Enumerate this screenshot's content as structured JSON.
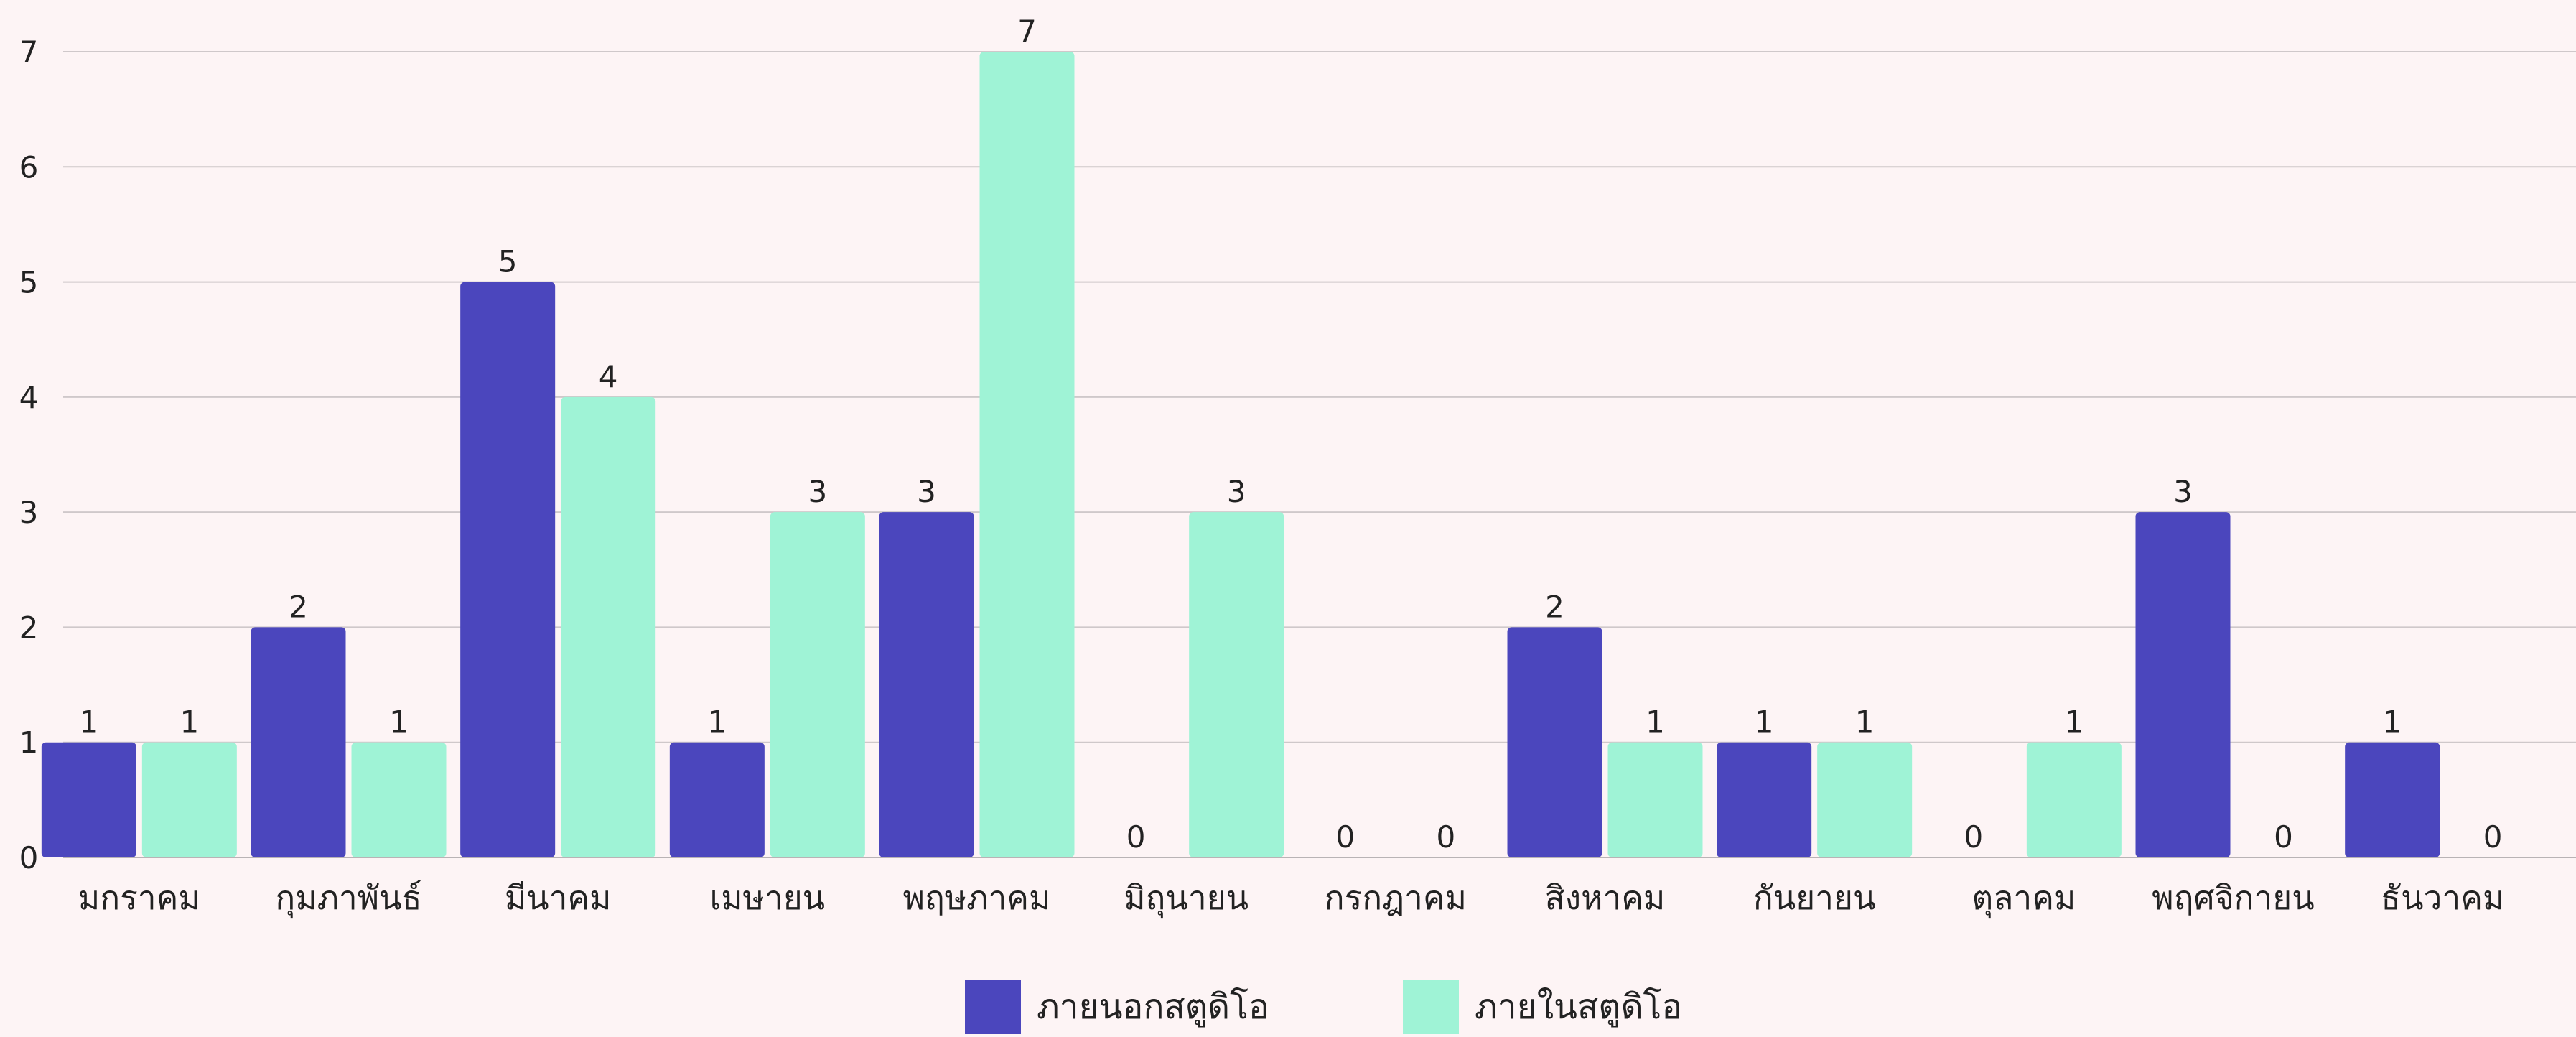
{
  "chart_data": {
    "type": "bar",
    "title": "",
    "xlabel": "",
    "ylabel": "",
    "categories": [
      "มกราคม",
      "กุมภาพันธ์",
      "มีนาคม",
      "เมษายน",
      "พฤษภาคม",
      "มิถุนายน",
      "กรกฎาคม",
      "สิงหาคม",
      "กันยายน",
      "ตุลาคม",
      "พฤศจิกายน",
      "ธันวาคม"
    ],
    "series": [
      {
        "name": "ภายนอกสตูดิโอ",
        "values": [
          1,
          2,
          5,
          1,
          3,
          0,
          0,
          2,
          1,
          0,
          3,
          1
        ],
        "color": "#4b46bd"
      },
      {
        "name": "ภายในสตูดิโอ",
        "values": [
          1,
          1,
          4,
          3,
          7,
          3,
          0,
          1,
          1,
          1,
          0,
          0
        ],
        "color": "#9ff3d6"
      }
    ],
    "ylim": [
      0,
      7
    ],
    "yticks": [
      0,
      1,
      2,
      3,
      4,
      5,
      6,
      7
    ],
    "grid": true,
    "data_labels": true,
    "legend_position": "bottom-center"
  },
  "colors": {
    "background": "#fdf4f5",
    "grid": "#cfc8ca",
    "axis": "#b9b3b5",
    "text": "#222222"
  }
}
